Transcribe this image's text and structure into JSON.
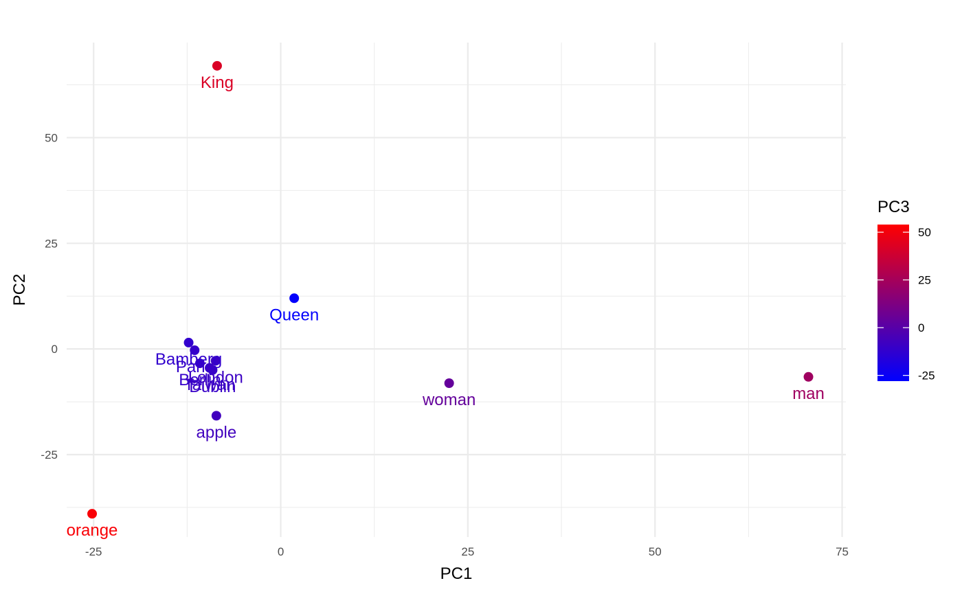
{
  "chart_data": {
    "type": "scatter",
    "xlabel": "PC1",
    "ylabel": "PC2",
    "xlim": [
      -28.6,
      75.5
    ],
    "ylim": [
      -44.5,
      72.5
    ],
    "x_ticks": [
      -25,
      0,
      25,
      50,
      75
    ],
    "x_tick_labels": [
      "-25",
      "0",
      "25",
      "50",
      "75"
    ],
    "y_ticks": [
      -25,
      0,
      25,
      50
    ],
    "y_tick_labels": [
      "-25",
      "0",
      "25",
      "50"
    ],
    "grid": true,
    "color_legend": {
      "title": "PC3",
      "low_color": "#0000ff",
      "high_color": "#ff0000",
      "range": [
        -28,
        54
      ],
      "ticks": [
        50,
        25,
        0,
        -25
      ],
      "tick_labels": [
        "50",
        "25",
        "0",
        "-25"
      ],
      "placement": "right"
    },
    "points": [
      {
        "label": "King",
        "x": -8.5,
        "y": 67,
        "pc3": 42
      },
      {
        "label": "Queen",
        "x": 1.8,
        "y": 12,
        "pc3": -27
      },
      {
        "label": "Bamberg",
        "x": -12.3,
        "y": 1.5,
        "pc3": -12
      },
      {
        "label": "Paris",
        "x": -11.5,
        "y": -0.3,
        "pc3": -11
      },
      {
        "label": "Berlin",
        "x": -10.8,
        "y": -3.4,
        "pc3": -11
      },
      {
        "label": "London",
        "x": -8.7,
        "y": -2.8,
        "pc3": -9
      },
      {
        "label": "Dublin",
        "x": -9.1,
        "y": -5,
        "pc3": -10
      },
      {
        "label": "Taiwan",
        "x": -9.5,
        "y": -4.5,
        "pc3": -9
      },
      {
        "label": "apple",
        "x": -8.6,
        "y": -15.8,
        "pc3": -7
      },
      {
        "label": "woman",
        "x": 22.5,
        "y": -8.1,
        "pc3": 4
      },
      {
        "label": "man",
        "x": 70.5,
        "y": -6.6,
        "pc3": 23
      },
      {
        "label": "orange",
        "x": -25.2,
        "y": -39,
        "pc3": 52
      }
    ]
  }
}
